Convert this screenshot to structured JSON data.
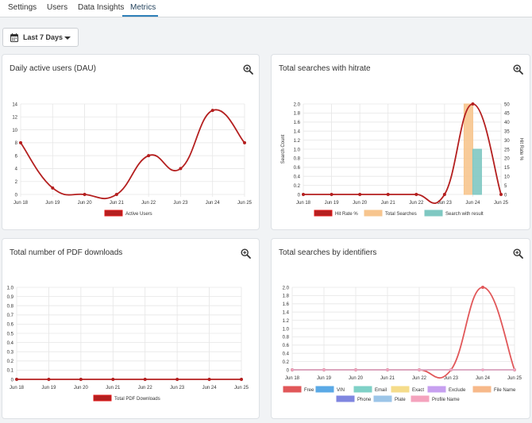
{
  "tabs": [
    {
      "label": "Settings"
    },
    {
      "label": "Users"
    },
    {
      "label": "Data Insights"
    },
    {
      "label": "Metrics"
    }
  ],
  "active_tab": "Metrics",
  "date_range": {
    "label": "Last 7 Days",
    "icon": "calendar-icon"
  },
  "colors": {
    "accent": "#2e7fb8",
    "red_line": "#b41f1f",
    "red_legend": "#e41a1a",
    "orange": "#f7c58e",
    "teal": "#7fc8c2"
  },
  "cards": [
    {
      "title": "Daily active users (DAU)",
      "icon": "zoom-in-icon"
    },
    {
      "title": "Total searches with hitrate",
      "icon": "zoom-in-icon"
    },
    {
      "title": "Total number of PDF downloads",
      "icon": "zoom-in-icon"
    },
    {
      "title": "Total searches by identifiers",
      "icon": "zoom-in-icon"
    }
  ],
  "chart_data": [
    {
      "type": "line",
      "title": "Daily active users (DAU)",
      "categories": [
        "Jun 18",
        "Jun 19",
        "Jun 20",
        "Jun 21",
        "Jun 22",
        "Jun 23",
        "Jun 24",
        "Jun 25"
      ],
      "yticks": [
        "0",
        "2",
        "4",
        "6",
        "8",
        "10",
        "12",
        "14"
      ],
      "ylim": [
        0,
        14
      ],
      "grid": true,
      "legend_position": "bottom",
      "series": [
        {
          "name": "Active Users",
          "values": [
            8,
            1,
            0,
            0,
            6,
            4,
            13,
            8
          ],
          "color": "#b41f1f"
        }
      ]
    },
    {
      "type": "bar",
      "title": "Total searches with hitrate",
      "categories": [
        "Jun 18",
        "Jun 19",
        "Jun 20",
        "Jun 21",
        "Jun 22",
        "Jun 23",
        "Jun 24",
        "Jun 25"
      ],
      "ylabel": "Search Count",
      "y2label": "Hit Rate %",
      "yticks": [
        "0",
        "0.2",
        "0.4",
        "0.6",
        "0.8",
        "1.0",
        "1.2",
        "1.4",
        "1.6",
        "1.8",
        "2.0"
      ],
      "y2ticks": [
        "0",
        "5",
        "10",
        "15",
        "20",
        "25",
        "30",
        "35",
        "40",
        "45",
        "50"
      ],
      "ylim": [
        0,
        2
      ],
      "y2lim": [
        0,
        50
      ],
      "grid": true,
      "legend_position": "bottom",
      "series": [
        {
          "name": "Hit Rate %",
          "type": "line",
          "axis": "right",
          "values": [
            0,
            0,
            0,
            0,
            0,
            0,
            50,
            0
          ],
          "color": "#b41f1f"
        },
        {
          "name": "Total Searches",
          "type": "bar",
          "values": [
            0,
            0,
            0,
            0,
            0,
            0,
            2,
            0
          ],
          "color": "#f7c58e"
        },
        {
          "name": "Search with result",
          "type": "bar",
          "values": [
            0,
            0,
            0,
            0,
            0,
            0,
            1,
            0
          ],
          "color": "#7fc8c2"
        }
      ]
    },
    {
      "type": "line",
      "title": "Total number of PDF downloads",
      "categories": [
        "Jun 18",
        "Jun 19",
        "Jun 20",
        "Jun 21",
        "Jun 22",
        "Jun 23",
        "Jun 24",
        "Jun 25"
      ],
      "yticks": [
        "0",
        "0.1",
        "0.2",
        "0.3",
        "0.4",
        "0.5",
        "0.6",
        "0.7",
        "0.8",
        "0.9",
        "1.0"
      ],
      "ylim": [
        0,
        1
      ],
      "grid": true,
      "legend_position": "bottom",
      "series": [
        {
          "name": "Total PDF Downloads",
          "values": [
            0,
            0,
            0,
            0,
            0,
            0,
            0,
            0
          ],
          "color": "#b41f1f"
        }
      ]
    },
    {
      "type": "line",
      "title": "Total searches by identifiers",
      "categories": [
        "Jun 18",
        "Jun 19",
        "Jun 20",
        "Jun 21",
        "Jun 22",
        "Jun 23",
        "Jun 24",
        "Jun 25"
      ],
      "yticks": [
        "0",
        "0.2",
        "0.4",
        "0.6",
        "0.8",
        "1.0",
        "1.2",
        "1.4",
        "1.6",
        "1.8",
        "2.0"
      ],
      "ylim": [
        0,
        2
      ],
      "grid": true,
      "legend_position": "bottom",
      "series": [
        {
          "name": "Free",
          "values": [
            0,
            0,
            0,
            0,
            0,
            0,
            2,
            0
          ],
          "color": "#e15759"
        },
        {
          "name": "VIN",
          "values": [
            0,
            0,
            0,
            0,
            0,
            0,
            0,
            0
          ],
          "color": "#5aa9e6"
        },
        {
          "name": "Email",
          "values": [
            0,
            0,
            0,
            0,
            0,
            0,
            0,
            0
          ],
          "color": "#7fd1c7"
        },
        {
          "name": "Exact",
          "values": [
            0,
            0,
            0,
            0,
            0,
            0,
            0,
            0
          ],
          "color": "#f5dc8a"
        },
        {
          "name": "Exclude",
          "values": [
            0,
            0,
            0,
            0,
            0,
            0,
            0,
            0
          ],
          "color": "#c7a0f0"
        },
        {
          "name": "File Name",
          "values": [
            0,
            0,
            0,
            0,
            0,
            0,
            0,
            0
          ],
          "color": "#f7b98a"
        },
        {
          "name": "Phone",
          "values": [
            0,
            0,
            0,
            0,
            0,
            0,
            0,
            0
          ],
          "color": "#7f86e0"
        },
        {
          "name": "Plate",
          "values": [
            0,
            0,
            0,
            0,
            0,
            0,
            0,
            0
          ],
          "color": "#9cc5e8"
        },
        {
          "name": "Profile Name",
          "values": [
            0,
            0,
            0,
            0,
            0,
            0,
            0,
            0
          ],
          "color": "#f4a3bd"
        }
      ]
    }
  ]
}
